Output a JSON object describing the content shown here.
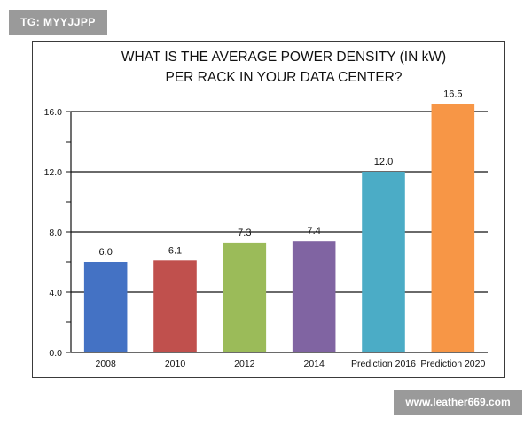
{
  "watermarks": {
    "top_left": "TG: MYYJJPP",
    "bottom_right": "www.leather669.com"
  },
  "chart_data": {
    "type": "bar",
    "title_lines": [
      "WHAT IS THE AVERAGE POWER DENSITY (IN kW)",
      "PER RACK IN  YOUR DATA CENTER?"
    ],
    "categories": [
      "2008",
      "2010",
      "2012",
      "2014",
      "Prediction 2016",
      "Prediction 2020"
    ],
    "values": [
      6.0,
      6.1,
      7.3,
      7.4,
      12.0,
      16.5
    ],
    "value_labels": [
      "6.0",
      "6.1",
      "7.3",
      "7.4",
      "12.0",
      "16.5"
    ],
    "colors": [
      "#4472c4",
      "#c0504d",
      "#9bbb59",
      "#8064a2",
      "#4bacc6",
      "#f79646"
    ],
    "ylim": [
      0,
      16
    ],
    "yticks": [
      0,
      4,
      8,
      12,
      16
    ],
    "ytick_labels": [
      "0.0",
      "4.0",
      "8.0",
      "12.0",
      "16.0"
    ],
    "grid": true,
    "legend": "none"
  }
}
